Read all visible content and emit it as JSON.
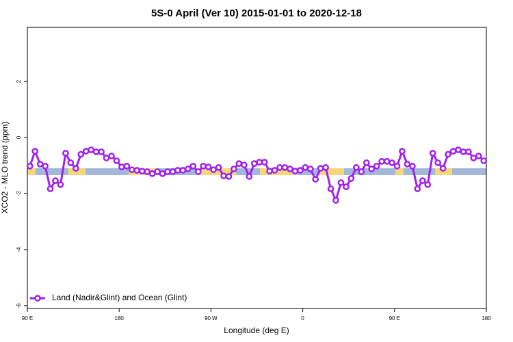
{
  "chart_data": {
    "type": "line",
    "title": "5S-0 April (Ver 10)   2015-01-01 to 2020-12-18",
    "x_label": "Longitude (deg E)",
    "y_label": "XCO2 - MLO trend (ppm)",
    "xlim": [
      90,
      540
    ],
    "xticks": [
      {
        "value": 90,
        "label": "90 E"
      },
      180,
      {
        "value": 270,
        "label": "90 W"
      },
      {
        "value": 360,
        "label": "0"
      },
      {
        "value": 450,
        "label": "90 E"
      },
      {
        "value": 540,
        "label": "180"
      }
    ],
    "ylim": [
      -6.1,
      3.93
    ],
    "yticks": [
      -6,
      -4,
      -2,
      0,
      2
    ],
    "legend": "bottom-left",
    "x": [
      92.5,
      97.5,
      102.5,
      107.5,
      112.5,
      117.5,
      122.5,
      127.5,
      132.5,
      137.5,
      142.5,
      147.5,
      152.5,
      157.5,
      162.5,
      167.5,
      172.5,
      177.5,
      182.5,
      187.5,
      192.5,
      197.5,
      202.5,
      207.5,
      212.5,
      217.5,
      222.5,
      227.5,
      232.5,
      237.5,
      242.5,
      247.5,
      252.5,
      257.5,
      262.5,
      267.5,
      272.5,
      277.5,
      282.5,
      287.5,
      292.5,
      297.5,
      302.5,
      307.5,
      312.5,
      317.5,
      322.5,
      327.5,
      332.5,
      337.5,
      342.5,
      347.5,
      352.5,
      357.5,
      362.5,
      367.5,
      372.5,
      377.5,
      382.5,
      387.5,
      392.5,
      397.5,
      402.5,
      407.5,
      412.5,
      417.5,
      422.5,
      427.5,
      432.5,
      437.5,
      442.5,
      447.5,
      452.5,
      457.5,
      462.5,
      467.5,
      472.5,
      477.5,
      482.5,
      487.5,
      492.5,
      497.5,
      502.5,
      507.5,
      512.5,
      517.5,
      522.5,
      527.5,
      532.5,
      537.5
    ],
    "series": [
      {
        "name": "Land (Nadir&Glint) and Ocean (Glint)",
        "color": "#a020f0",
        "values": [
          -1.02,
          -0.49,
          -0.95,
          -1.02,
          -1.83,
          -1.54,
          -1.68,
          -0.56,
          -0.9,
          -1.1,
          -0.6,
          -0.49,
          -0.44,
          -0.51,
          -0.51,
          -0.73,
          -0.66,
          -0.83,
          -1.05,
          -1.02,
          -1.15,
          -1.17,
          -1.2,
          -1.22,
          -1.29,
          -1.22,
          -1.29,
          -1.22,
          -1.22,
          -1.17,
          -1.17,
          -1.12,
          -1.02,
          -1.22,
          -1.02,
          -1.05,
          -1.15,
          -1.07,
          -1.37,
          -1.39,
          -1.12,
          -0.93,
          -0.98,
          -1.39,
          -0.93,
          -0.88,
          -0.88,
          -1.2,
          -1.17,
          -1.07,
          -1.07,
          -1.12,
          -1.2,
          -1.17,
          -1.07,
          -1.12,
          -1.49,
          -1.1,
          -1.07,
          -1.83,
          -2.24,
          -1.61,
          -1.76,
          -1.46,
          -1.07,
          -1.22,
          -0.9,
          -1.12,
          -1.02,
          -0.85,
          -0.85,
          -0.9,
          -1.02,
          -0.49,
          -0.95,
          -1.02,
          -1.83,
          -1.54,
          -1.68,
          -0.56,
          -0.9,
          -1.1,
          -0.6,
          -0.49,
          -0.44,
          -0.51,
          -0.51,
          -0.73,
          -0.66,
          -0.83
        ]
      }
    ]
  }
}
